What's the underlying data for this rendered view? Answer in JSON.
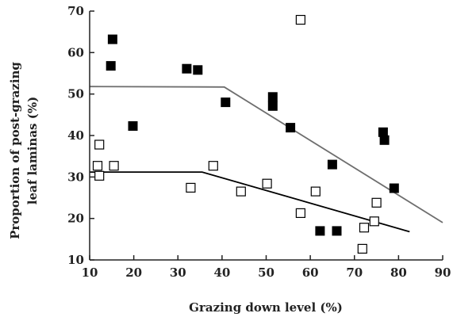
{
  "chart_data": {
    "type": "scatter",
    "title": "",
    "xlabel": "Grazing down level (%)",
    "ylabel": [
      "Proportion of post-grazing",
      "leaf laminas (%)"
    ],
    "xlim": [
      10,
      90
    ],
    "ylim": [
      10,
      70
    ],
    "xticks": [
      10,
      20,
      30,
      40,
      50,
      60,
      70,
      80,
      90
    ],
    "yticks": [
      10,
      20,
      30,
      40,
      50,
      60,
      70
    ],
    "grid": false,
    "legend": "none",
    "series": [
      {
        "marker": "filled-square",
        "color": "#000000",
        "points": [
          [
            15.2,
            63.2
          ],
          [
            14.8,
            56.8
          ],
          [
            19.8,
            42.3
          ],
          [
            32.0,
            56.1
          ],
          [
            34.5,
            55.8
          ],
          [
            40.8,
            48.0
          ],
          [
            51.5,
            49.3
          ],
          [
            51.5,
            47.1
          ],
          [
            55.5,
            41.9
          ],
          [
            65.0,
            33.0
          ],
          [
            62.2,
            17.0
          ],
          [
            66.0,
            17.0
          ],
          [
            76.5,
            40.8
          ],
          [
            76.8,
            38.9
          ],
          [
            79.0,
            27.3
          ]
        ]
      },
      {
        "marker": "open-square",
        "color": "#000000",
        "points": [
          [
            12.2,
            37.8
          ],
          [
            11.8,
            32.7
          ],
          [
            12.2,
            30.3
          ],
          [
            15.5,
            32.7
          ],
          [
            32.9,
            27.4
          ],
          [
            38.0,
            32.7
          ],
          [
            44.3,
            26.5
          ],
          [
            50.2,
            28.4
          ],
          [
            57.8,
            67.9
          ],
          [
            57.8,
            21.3
          ],
          [
            61.2,
            26.5
          ],
          [
            71.8,
            12.7
          ],
          [
            72.2,
            17.8
          ],
          [
            74.5,
            19.3
          ],
          [
            75.0,
            23.8
          ]
        ]
      }
    ],
    "fit_lines": [
      {
        "color": "#6e6e6e",
        "points": [
          [
            10,
            51.8
          ],
          [
            40.5,
            51.7
          ],
          [
            90,
            19.0
          ]
        ]
      },
      {
        "color": "#000000",
        "points": [
          [
            10,
            31.2
          ],
          [
            35.5,
            31.2
          ],
          [
            82.5,
            16.8
          ]
        ]
      }
    ]
  }
}
